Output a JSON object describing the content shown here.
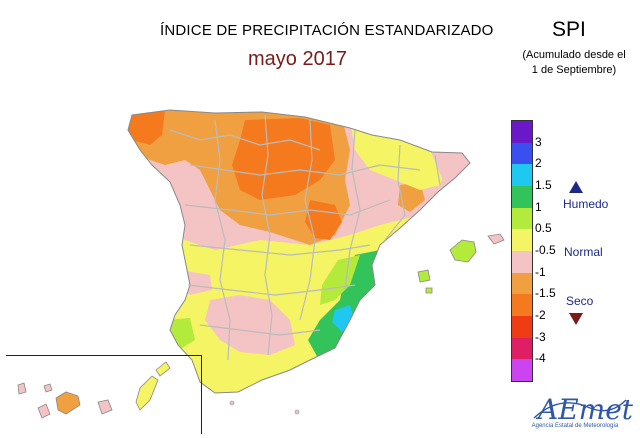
{
  "header": {
    "title": "ÍNDICE DE PRECIPITACIÓN ESTANDARIZADO",
    "subtitle": "mayo 2017",
    "index_name": "SPI",
    "index_note_line1": "(Acumulado desde el",
    "index_note_line2": "1 de Septiembre)"
  },
  "legend": {
    "bins": [
      {
        "color": "#6a18c8"
      },
      {
        "color": "#3a4ff0"
      },
      {
        "color": "#1ec8f0"
      },
      {
        "color": "#32c35a"
      },
      {
        "color": "#b4ea3c"
      },
      {
        "color": "#f4f464"
      },
      {
        "color": "#f4c4c4"
      },
      {
        "color": "#f0a040"
      },
      {
        "color": "#f57a1e"
      },
      {
        "color": "#f03c14"
      },
      {
        "color": "#e01e64"
      },
      {
        "color": "#cc44f0"
      }
    ],
    "ticks": [
      "3",
      "2",
      "1.5",
      "1",
      "0.5",
      "-0.5",
      "-1",
      "-1.5",
      "-2",
      "-3",
      "-4"
    ],
    "classes": {
      "wet": "Humedo",
      "normal": "Normal",
      "dry": "Seco"
    }
  },
  "logo": {
    "name": "AEmet",
    "tagline": "Agencia Estatal de Meteorología"
  },
  "colors": {
    "normal": "#f4f464",
    "pink": "#f4c4c4",
    "orange": "#f0a040",
    "dark_orange": "#f57a1e",
    "green": "#32c35a",
    "light_green": "#b4ea3c",
    "cyan": "#1ec8f0",
    "border_grey": "#bbbbbb"
  }
}
